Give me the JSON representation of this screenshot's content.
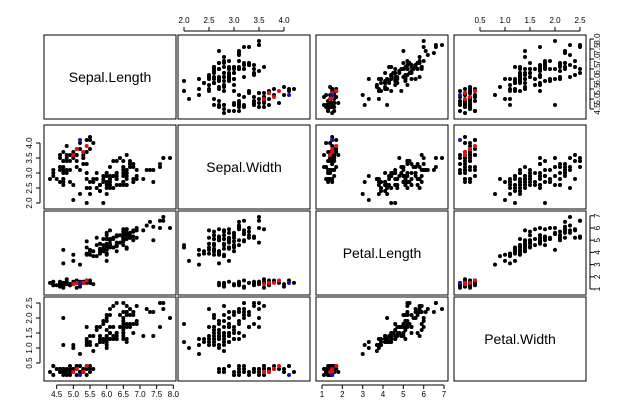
{
  "chart_data": {
    "type": "scatter-matrix",
    "variables": [
      {
        "name": "Sepal.Length",
        "ticks": [
          4.5,
          5.0,
          5.5,
          6.0,
          6.5,
          7.0,
          7.5,
          8.0
        ],
        "tick_labels": [
          "4.5",
          "5.0",
          "5.5",
          "6.0",
          "6.5",
          "7.0",
          "7.5",
          "8.0"
        ],
        "range": [
          4.3,
          7.9
        ]
      },
      {
        "name": "Sepal.Width",
        "ticks": [
          2.0,
          2.5,
          3.0,
          3.5,
          4.0
        ],
        "tick_labels": [
          "2.0",
          "2.5",
          "3.0",
          "3.5",
          "4.0"
        ],
        "range": [
          2.0,
          4.4
        ]
      },
      {
        "name": "Petal.Length",
        "ticks": [
          1,
          2,
          3,
          4,
          5,
          6,
          7
        ],
        "tick_labels": [
          "1",
          "2",
          "3",
          "4",
          "5",
          "6",
          "7"
        ],
        "range": [
          1.0,
          6.9
        ]
      },
      {
        "name": "Petal.Width",
        "ticks": [
          0.5,
          1.0,
          1.5,
          2.0,
          2.5
        ],
        "tick_labels": [
          "0.5",
          "1.0",
          "1.5",
          "2.0",
          "2.5"
        ],
        "range": [
          0.1,
          2.5
        ]
      }
    ],
    "highlight_colors": {
      "default": "#000000",
      "red": "#e01010",
      "blue": "#1010c0"
    },
    "highlighted_points": [
      {
        "values": [
          5.3,
          3.7,
          1.5,
          0.2
        ],
        "color": "red"
      },
      {
        "values": [
          5.4,
          3.9,
          1.7,
          0.4
        ],
        "color": "red"
      },
      {
        "values": [
          5.1,
          3.8,
          1.5,
          0.3
        ],
        "color": "red"
      },
      {
        "values": [
          5.0,
          3.6,
          1.4,
          0.2
        ],
        "color": "red"
      },
      {
        "values": [
          5.2,
          4.1,
          1.5,
          0.1
        ],
        "color": "blue"
      }
    ],
    "grid": false,
    "legend": "none"
  }
}
